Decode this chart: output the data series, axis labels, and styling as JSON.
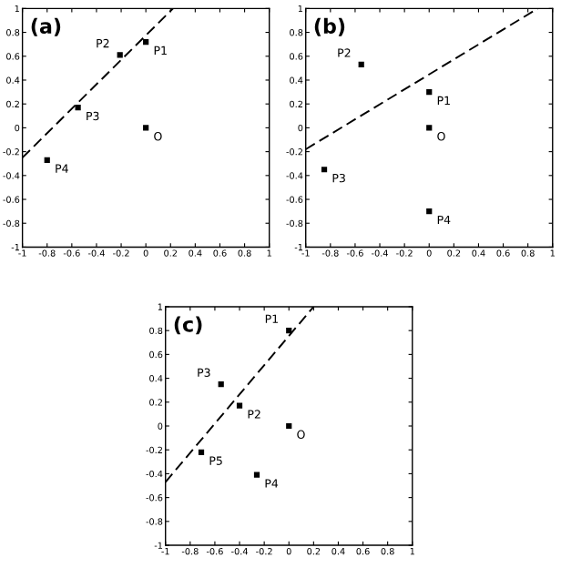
{
  "chart_data": [
    {
      "type": "scatter",
      "title": "(a)",
      "xlim": [
        -1,
        1
      ],
      "ylim": [
        -1,
        1
      ],
      "xticks": [
        -1,
        -0.8,
        -0.6,
        -0.4,
        -0.2,
        0,
        0.2,
        0.4,
        0.6,
        0.8,
        1
      ],
      "yticks": [
        -1,
        -0.8,
        -0.6,
        -0.4,
        -0.2,
        0,
        0.2,
        0.4,
        0.6,
        0.8,
        1
      ],
      "grid": false,
      "series": [
        {
          "color": "#000000",
          "marker": "square",
          "x": [
            0,
            -0.21,
            -0.55,
            -0.8,
            0
          ],
          "values": [
            0.72,
            0.61,
            0.17,
            -0.27,
            0
          ]
        },
        {
          "type": "line",
          "color": "#000000",
          "line_style": "dashed",
          "x": [
            -1,
            0.22
          ],
          "values": [
            -0.25,
            1
          ]
        }
      ],
      "annotations": [
        {
          "text": "P1",
          "x": 0,
          "y": 0.72
        },
        {
          "text": "P2",
          "x": -0.21,
          "y": 0.61
        },
        {
          "text": "P3",
          "x": -0.55,
          "y": 0.17
        },
        {
          "text": "P4",
          "x": -0.8,
          "y": -0.27
        },
        {
          "text": "O",
          "x": 0,
          "y": 0
        }
      ]
    },
    {
      "type": "scatter",
      "title": "(b)",
      "xlim": [
        -1,
        1
      ],
      "ylim": [
        -1,
        1
      ],
      "xticks": [
        -1,
        -0.8,
        -0.6,
        -0.4,
        -0.2,
        0,
        0.2,
        0.4,
        0.6,
        0.8,
        1
      ],
      "yticks": [
        -1,
        -0.8,
        -0.6,
        -0.4,
        -0.2,
        0,
        0.2,
        0.4,
        0.6,
        0.8,
        1
      ],
      "grid": false,
      "series": [
        {
          "color": "#000000",
          "marker": "square",
          "x": [
            0,
            -0.55,
            -0.85,
            0,
            0
          ],
          "values": [
            0.3,
            0.53,
            -0.35,
            -0.7,
            0
          ]
        },
        {
          "type": "line",
          "color": "#000000",
          "line_style": "dashed",
          "x": [
            -1,
            0.88
          ],
          "values": [
            -0.18,
            1
          ]
        }
      ],
      "annotations": [
        {
          "text": "P1",
          "x": 0,
          "y": 0.3
        },
        {
          "text": "P2",
          "x": -0.55,
          "y": 0.53
        },
        {
          "text": "P3",
          "x": -0.85,
          "y": -0.35
        },
        {
          "text": "P4",
          "x": 0,
          "y": -0.7
        },
        {
          "text": "O",
          "x": 0,
          "y": 0
        }
      ]
    },
    {
      "type": "scatter",
      "title": "(c)",
      "xlim": [
        -1,
        1
      ],
      "ylim": [
        -1,
        1
      ],
      "xticks": [
        -1,
        -0.8,
        -0.6,
        -0.4,
        -0.2,
        0,
        0.2,
        0.4,
        0.6,
        0.8,
        1
      ],
      "yticks": [
        -1,
        -0.8,
        -0.6,
        -0.4,
        -0.2,
        0,
        0.2,
        0.4,
        0.6,
        0.8,
        1
      ],
      "grid": false,
      "series": [
        {
          "color": "#000000",
          "marker": "square",
          "x": [
            0,
            -0.4,
            -0.55,
            -0.26,
            -0.71,
            0
          ],
          "values": [
            0.8,
            0.17,
            0.35,
            -0.41,
            -0.22,
            0
          ]
        },
        {
          "type": "line",
          "color": "#000000",
          "line_style": "dashed",
          "x": [
            -1,
            0.2
          ],
          "values": [
            -0.47,
            1
          ]
        }
      ],
      "annotations": [
        {
          "text": "P1",
          "x": 0,
          "y": 0.8
        },
        {
          "text": "P2",
          "x": -0.4,
          "y": 0.17
        },
        {
          "text": "P3",
          "x": -0.55,
          "y": 0.35
        },
        {
          "text": "P4",
          "x": -0.26,
          "y": -0.41
        },
        {
          "text": "P5",
          "x": -0.71,
          "y": -0.22
        },
        {
          "text": "O",
          "x": 0,
          "y": 0
        }
      ]
    }
  ]
}
